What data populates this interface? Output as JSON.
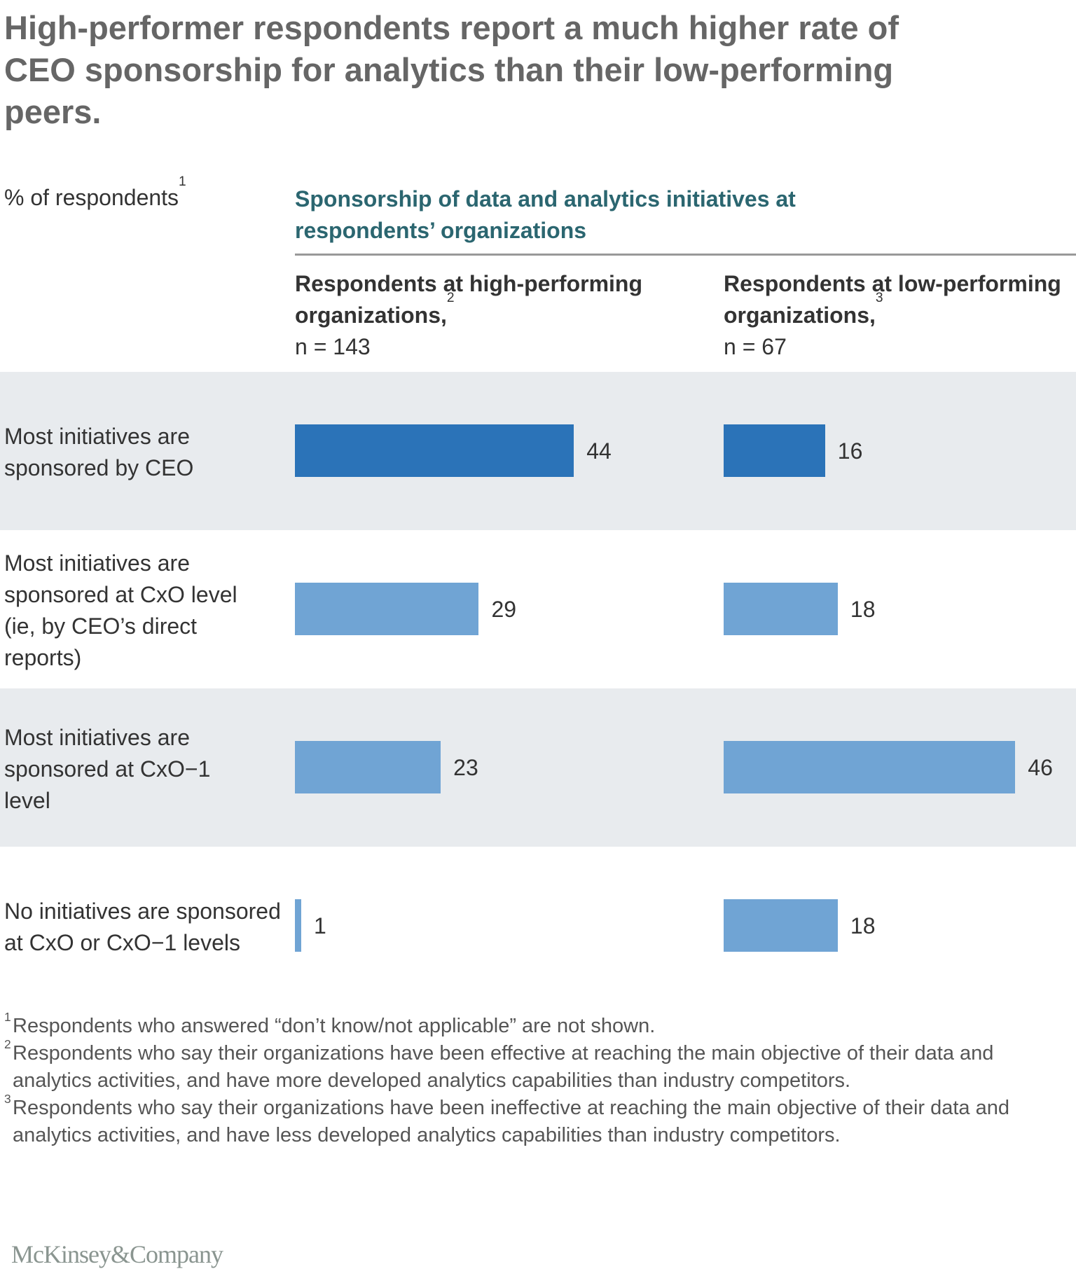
{
  "title": "High-performer respondents report a much higher rate of CEO sponsorship for analytics than their low-performing peers.",
  "unit_label": "% of respondents",
  "unit_footnote": "1",
  "group_heading": "Sponsorship of data and analytics initiatives at respondents’ organizations",
  "columns": [
    {
      "heading": "Respondents at high-performing organizations,",
      "footnote": "2",
      "n": "n = 143"
    },
    {
      "heading": "Respondents at low-performing organizations,",
      "footnote": "3",
      "n": "n = 67"
    }
  ],
  "colors": {
    "dark_bar": "#2b73b8",
    "light_bar": "#70a4d4",
    "band": "#e8ebee",
    "heading": "#2b6670"
  },
  "chart_data": {
    "type": "bar",
    "orientation": "horizontal",
    "title": "High-performer respondents report a much higher rate of CEO sponsorship for analytics than their low-performing peers.",
    "xlabel": "% of respondents",
    "ylabel": "",
    "categories": [
      "Most initiatives are sponsored by CEO",
      "Most initiatives are sponsored at CxO level (ie, by CEO’s direct reports)",
      "Most initiatives are sponsored at CxO−1 level",
      "No initiatives are sponsored at CxO or CxO−1 levels"
    ],
    "series": [
      {
        "name": "Respondents at high-performing organizations, n = 143",
        "values": [
          44,
          29,
          23,
          1
        ]
      },
      {
        "name": "Respondents at low-performing organizations, n = 67",
        "values": [
          16,
          18,
          46,
          18
        ]
      }
    ],
    "highlight_category": "Most initiatives are sponsored by CEO",
    "xlim": [
      0,
      50
    ],
    "grid": false,
    "legend": "column-headers"
  },
  "rows": [
    {
      "label": "Most initiatives are sponsored by CEO",
      "high": "44",
      "low": "16"
    },
    {
      "label": "Most initiatives are sponsored at CxO level (ie, by CEO’s direct reports)",
      "high": "29",
      "low": "18"
    },
    {
      "label": "Most initiatives are sponsored at CxO−1 level",
      "high": "23",
      "low": "46"
    },
    {
      "label": "No initiatives are sponsored at CxO or CxO−1 levels",
      "high": "1",
      "low": "18"
    }
  ],
  "footnotes": [
    {
      "mark": "1",
      "text": "Respondents who answered “don’t know/not applicable” are not shown."
    },
    {
      "mark": "2",
      "text": "Respondents who say their organizations have been effective at reaching the main objective of their data and analytics activities, and have more developed analytics capabilities than industry competitors."
    },
    {
      "mark": "3",
      "text": "Respondents who say their organizations have been ineffective at reaching the main objective of their data and analytics activities, and have less developed analytics capabilities than industry competitors."
    }
  ],
  "logo": "McKinsey&Company"
}
